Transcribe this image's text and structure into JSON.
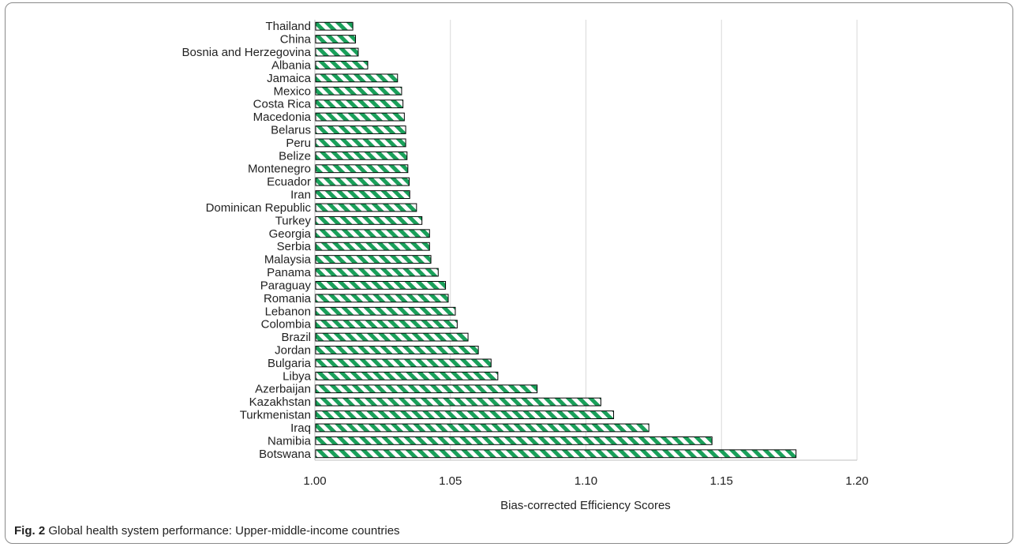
{
  "caption": {
    "label": "Fig. 2",
    "text": " Global health system performance: Upper-middle-income countries"
  },
  "colors": {
    "bar_stripe": "#1aa05a",
    "bar_fill": "#ffffff",
    "bar_border": "#000000",
    "grid": "#d9d9d9",
    "axis": "#bfbfbf"
  },
  "chart_data": {
    "type": "bar",
    "orientation": "horizontal",
    "title": "",
    "xlabel": "Bias-corrected Efficiency Scores",
    "ylabel": "",
    "xlim": [
      1.0,
      1.2
    ],
    "xticks": [
      "1.00",
      "1.05",
      "1.10",
      "1.15",
      "1.20"
    ],
    "grid": "vertical",
    "categories": [
      "Thailand",
      "China",
      "Bosnia and Herzegovina",
      "Albania",
      "Jamaica",
      "Mexico",
      "Costa Rica",
      "Macedonia",
      "Belarus",
      "Peru",
      "Belize",
      "Montenegro",
      "Ecuador",
      "Iran",
      "Dominican Republic",
      "Turkey",
      "Georgia",
      "Serbia",
      "Malaysia",
      "Panama",
      "Paraguay",
      "Romania",
      "Lebanon",
      "Colombia",
      "Brazil",
      "Jordan",
      "Bulgaria",
      "Libya",
      "Azerbaijan",
      "Kazakhstan",
      "Turkmenistan",
      "Iraq",
      "Namibia",
      "Botswana"
    ],
    "values": [
      1.014,
      1.015,
      1.016,
      1.0195,
      1.0305,
      1.032,
      1.0325,
      1.033,
      1.0335,
      1.0335,
      1.034,
      1.0343,
      1.0348,
      1.035,
      1.0375,
      1.0395,
      1.0423,
      1.0423,
      1.0428,
      1.0455,
      1.0482,
      1.0492,
      1.0518,
      1.0525,
      1.0565,
      1.0603,
      1.065,
      1.0675,
      1.082,
      1.1055,
      1.1102,
      1.1232,
      1.1465,
      1.1775
    ]
  }
}
